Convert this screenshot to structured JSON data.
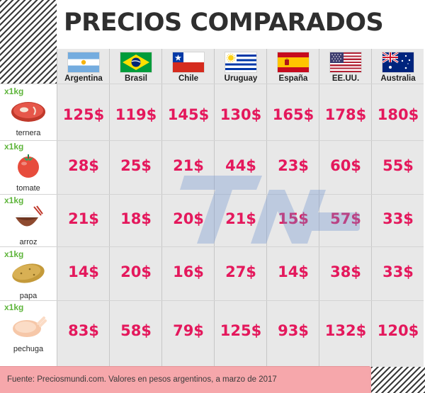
{
  "title": "PRECIOS COMPARADOS",
  "countries": [
    "Argentina",
    "Brasil",
    "Chile",
    "Uruguay",
    "España",
    "EE.UU.",
    "Australia"
  ],
  "products": [
    {
      "qty": "x1kg",
      "name": "ternera",
      "icon": "meat-icon",
      "prices": [
        "125$",
        "119$",
        "145$",
        "130$",
        "165$",
        "178$",
        "180$"
      ]
    },
    {
      "qty": "x1kg",
      "name": "tomate",
      "icon": "tomato-icon",
      "prices": [
        "28$",
        "25$",
        "21$",
        "44$",
        "23$",
        "60$",
        "55$"
      ]
    },
    {
      "qty": "x1kg",
      "name": "arroz",
      "icon": "rice-bowl-icon",
      "prices": [
        "21$",
        "18$",
        "20$",
        "21$",
        "15$",
        "57$",
        "33$"
      ]
    },
    {
      "qty": "x1kg",
      "name": "papa",
      "icon": "potato-icon",
      "prices": [
        "14$",
        "20$",
        "16$",
        "27$",
        "14$",
        "38$",
        "33$"
      ]
    },
    {
      "qty": "x1kg",
      "name": "pechuga",
      "icon": "chicken-icon",
      "prices": [
        "83$",
        "58$",
        "79$",
        "125$",
        "93$",
        "132$",
        "120$"
      ]
    }
  ],
  "footer": "Fuente: Preciosmundi.com. Valores en pesos argentinos, a marzo de 2017",
  "colors": {
    "price": "#e4185c",
    "qty": "#5fb53c",
    "footer_bg": "#f6a7ab",
    "title": "#2f2f2f"
  }
}
